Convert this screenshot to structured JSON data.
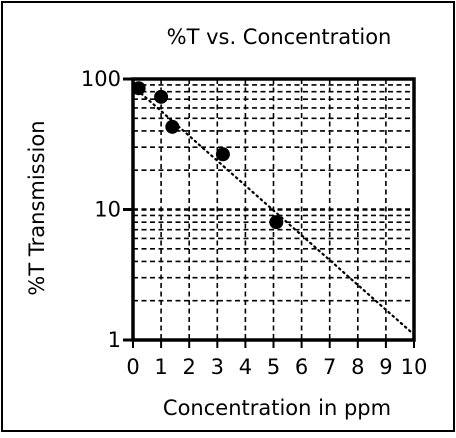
{
  "chart_data": {
    "type": "scatter",
    "title": "%T vs. Concentration",
    "xlabel": "Concentration in ppm",
    "ylabel": "%T Transmission",
    "xlim": [
      0,
      10
    ],
    "ylim": [
      1,
      100
    ],
    "yscale": "log",
    "x_ticks": [
      "0",
      "1",
      "2",
      "3",
      "4",
      "5",
      "6",
      "7",
      "8",
      "9",
      "10"
    ],
    "y_ticks": [
      "1",
      "10",
      "100"
    ],
    "grid": true,
    "grid_style": "dashed",
    "points": [
      {
        "x": 0.2,
        "y": 85
      },
      {
        "x": 1.0,
        "y": 73
      },
      {
        "x": 1.4,
        "y": 43
      },
      {
        "x": 3.2,
        "y": 26.5
      },
      {
        "x": 5.1,
        "y": 8
      }
    ],
    "trendline": {
      "style": "dotted",
      "from": {
        "x": 0,
        "y": 88
      },
      "to": {
        "x": 10,
        "y": 1.1
      }
    },
    "colors": {
      "line": "#000000",
      "point": "#000000",
      "background": "#ffffff"
    }
  }
}
